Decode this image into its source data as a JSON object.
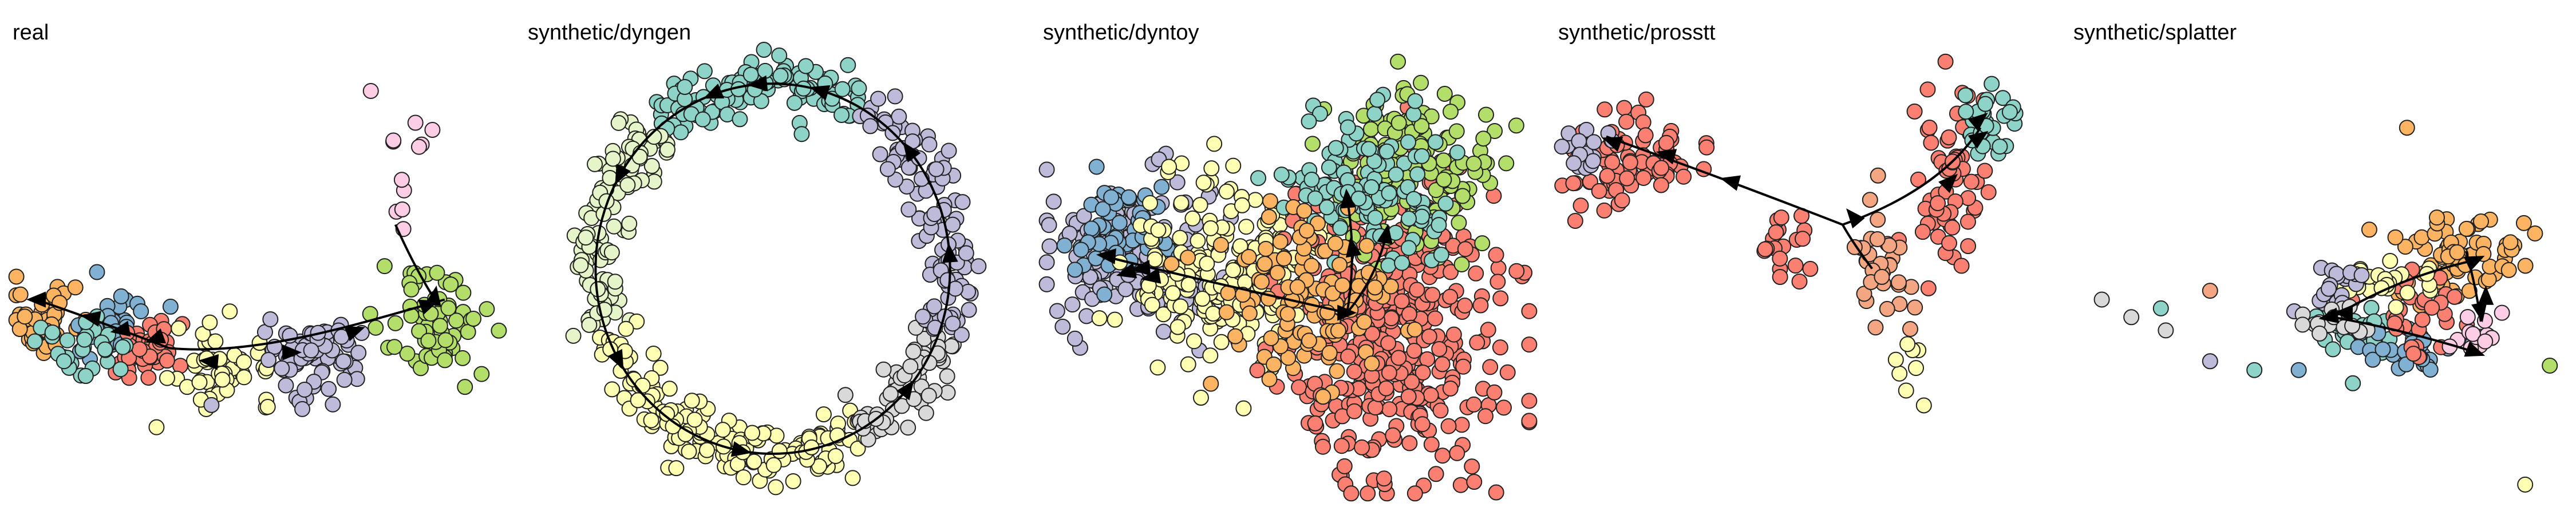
{
  "palette": [
    "#8DD3C7",
    "#FFFFB3",
    "#BEBADA",
    "#FB8072",
    "#80B1D3",
    "#FDB462",
    "#B3DE69",
    "#FCCDE5",
    "#D9D9D9",
    "#E6F5C9",
    "#F4A582",
    "#9ECAE1"
  ],
  "chart_data": [
    {
      "type": "scatter",
      "title": "real",
      "xlabel": "",
      "ylabel": "",
      "grid": false,
      "legend": "none",
      "clusters": [
        {
          "cx": 0.06,
          "cy": 0.4,
          "sx": 0.04,
          "sy": 0.035,
          "n": 55,
          "color": "#FDB462"
        },
        {
          "cx": 0.2,
          "cy": 0.38,
          "sx": 0.05,
          "sy": 0.04,
          "n": 45,
          "color": "#80B1D3"
        },
        {
          "cx": 0.27,
          "cy": 0.33,
          "sx": 0.04,
          "sy": 0.035,
          "n": 45,
          "color": "#FB8072"
        },
        {
          "cx": 0.16,
          "cy": 0.34,
          "sx": 0.05,
          "sy": 0.04,
          "n": 30,
          "color": "#8DD3C7"
        },
        {
          "cx": 0.43,
          "cy": 0.3,
          "sx": 0.05,
          "sy": 0.04,
          "n": 50,
          "color": "#FFFFB3"
        },
        {
          "cx": 0.62,
          "cy": 0.32,
          "sx": 0.05,
          "sy": 0.045,
          "n": 70,
          "color": "#BEBADA"
        },
        {
          "cx": 0.86,
          "cy": 0.39,
          "sx": 0.055,
          "sy": 0.06,
          "n": 75,
          "color": "#B3DE69"
        },
        {
          "cx": 0.8,
          "cy": 0.78,
          "sx": 0.04,
          "sy": 0.09,
          "n": 12,
          "color": "#FCCDE5"
        }
      ],
      "curves": [
        [
          [
            0.05,
            0.45
          ],
          [
            0.18,
            0.4
          ],
          [
            0.32,
            0.34
          ]
        ],
        [
          [
            0.32,
            0.34
          ],
          [
            0.5,
            0.32
          ],
          [
            0.72,
            0.4
          ],
          [
            0.88,
            0.45
          ]
        ],
        [
          [
            0.78,
            0.62
          ],
          [
            0.82,
            0.52
          ],
          [
            0.86,
            0.45
          ]
        ]
      ],
      "arrows": [
        {
          "x": 0.05,
          "y": 0.45,
          "ang": 180
        },
        {
          "x": 0.16,
          "y": 0.41,
          "ang": 170
        },
        {
          "x": 0.22,
          "y": 0.38,
          "ang": 190
        },
        {
          "x": 0.29,
          "y": 0.36,
          "ang": 200
        },
        {
          "x": 0.4,
          "y": 0.31,
          "ang": 175
        },
        {
          "x": 0.57,
          "y": 0.33,
          "ang": 0
        },
        {
          "x": 0.7,
          "y": 0.38,
          "ang": 20
        },
        {
          "x": 0.85,
          "y": 0.44,
          "ang": 20
        },
        {
          "x": 0.86,
          "y": 0.46,
          "ang": 80
        }
      ]
    },
    {
      "type": "scatter",
      "title": "synthetic/dyngen",
      "xlabel": "",
      "ylabel": "",
      "grid": false,
      "legend": "none",
      "ring": {
        "cx": 0.5,
        "cy": 0.52,
        "rx": 0.36,
        "ry": 0.42
      },
      "clusters": [
        {
          "angle_start": 60,
          "angle_end": 130,
          "n": 110,
          "color": "#8DD3C7"
        },
        {
          "angle_start": 130,
          "angle_end": 200,
          "n": 110,
          "color": "#E6F5C9"
        },
        {
          "angle_start": 200,
          "angle_end": 300,
          "n": 150,
          "color": "#FFFFB3"
        },
        {
          "angle_start": 300,
          "angle_end": 340,
          "n": 60,
          "color": "#D9D9D9"
        },
        {
          "angle_start": 340,
          "angle_end": 420,
          "n": 110,
          "color": "#BEBADA"
        }
      ],
      "arrows": [
        {
          "angle": 95,
          "dir": "ccw"
        },
        {
          "angle": 110,
          "dir": "ccw"
        },
        {
          "angle": 150,
          "dir": "ccw"
        },
        {
          "angle": 210,
          "dir": "ccw"
        },
        {
          "angle": 260,
          "dir": "ccw"
        },
        {
          "angle": 320,
          "dir": "ccw"
        },
        {
          "angle": 5,
          "dir": "ccw"
        },
        {
          "angle": 40,
          "dir": "ccw"
        },
        {
          "angle": 75,
          "dir": "ccw"
        }
      ]
    },
    {
      "type": "scatter",
      "title": "synthetic/dyntoy",
      "xlabel": "",
      "ylabel": "",
      "grid": false,
      "legend": "none",
      "clusters": [
        {
          "cx": 0.18,
          "cy": 0.55,
          "sx": 0.09,
          "sy": 0.08,
          "n": 160,
          "color": "#BEBADA"
        },
        {
          "cx": 0.15,
          "cy": 0.6,
          "sx": 0.06,
          "sy": 0.05,
          "n": 60,
          "color": "#80B1D3"
        },
        {
          "cx": 0.38,
          "cy": 0.52,
          "sx": 0.09,
          "sy": 0.1,
          "n": 200,
          "color": "#FFFFB3"
        },
        {
          "cx": 0.72,
          "cy": 0.4,
          "sx": 0.11,
          "sy": 0.18,
          "n": 420,
          "color": "#FB8072"
        },
        {
          "cx": 0.76,
          "cy": 0.74,
          "sx": 0.08,
          "sy": 0.09,
          "n": 160,
          "color": "#B3DE69"
        },
        {
          "cx": 0.66,
          "cy": 0.7,
          "sx": 0.08,
          "sy": 0.08,
          "n": 120,
          "color": "#8DD3C7"
        },
        {
          "cx": 0.55,
          "cy": 0.45,
          "sx": 0.09,
          "sy": 0.1,
          "n": 120,
          "color": "#FDB462"
        }
      ],
      "curves": [
        [
          [
            0.12,
            0.55
          ],
          [
            0.3,
            0.5
          ],
          [
            0.62,
            0.42
          ]
        ],
        [
          [
            0.62,
            0.42
          ],
          [
            0.64,
            0.55
          ],
          [
            0.62,
            0.68
          ]
        ],
        [
          [
            0.62,
            0.42
          ],
          [
            0.68,
            0.5
          ],
          [
            0.7,
            0.6
          ]
        ]
      ],
      "arrows": [
        {
          "x": 0.13,
          "y": 0.55,
          "ang": 175
        },
        {
          "x": 0.17,
          "y": 0.51,
          "ang": 195
        },
        {
          "x": 0.2,
          "y": 0.52,
          "ang": 185
        },
        {
          "x": 0.22,
          "y": 0.5,
          "ang": 190
        },
        {
          "x": 0.62,
          "y": 0.68,
          "ang": 95
        },
        {
          "x": 0.63,
          "y": 0.57,
          "ang": 100
        },
        {
          "x": 0.7,
          "y": 0.6,
          "ang": 80
        },
        {
          "x": 0.62,
          "y": 0.42,
          "ang": 0
        }
      ]
    },
    {
      "type": "scatter",
      "title": "synthetic/prosstt",
      "xlabel": "",
      "ylabel": "",
      "grid": false,
      "legend": "none",
      "clusters": [
        {
          "cx": 0.14,
          "cy": 0.76,
          "sx": 0.07,
          "sy": 0.05,
          "n": 80,
          "color": "#FB8072"
        },
        {
          "cx": 0.05,
          "cy": 0.8,
          "sx": 0.03,
          "sy": 0.03,
          "n": 18,
          "color": "#BEBADA"
        },
        {
          "cx": 0.45,
          "cy": 0.56,
          "sx": 0.03,
          "sy": 0.05,
          "n": 20,
          "color": "#FB8072"
        },
        {
          "cx": 0.79,
          "cy": 0.72,
          "sx": 0.035,
          "sy": 0.12,
          "n": 60,
          "color": "#FB8072"
        },
        {
          "cx": 0.87,
          "cy": 0.85,
          "sx": 0.03,
          "sy": 0.04,
          "n": 30,
          "color": "#8DD3C7"
        },
        {
          "cx": 0.66,
          "cy": 0.5,
          "sx": 0.03,
          "sy": 0.09,
          "n": 35,
          "color": "#F4A582"
        },
        {
          "cx": 0.71,
          "cy": 0.25,
          "sx": 0.02,
          "sy": 0.07,
          "n": 8,
          "color": "#FFFFB3"
        }
      ],
      "curves": [
        [
          [
            0.1,
            0.82
          ],
          [
            0.35,
            0.72
          ],
          [
            0.58,
            0.62
          ]
        ],
        [
          [
            0.58,
            0.62
          ],
          [
            0.78,
            0.7
          ],
          [
            0.86,
            0.84
          ]
        ],
        [
          [
            0.58,
            0.62
          ],
          [
            0.6,
            0.58
          ],
          [
            0.64,
            0.52
          ]
        ]
      ],
      "arrows": [
        {
          "x": 0.11,
          "y": 0.81,
          "ang": 160
        },
        {
          "x": 0.22,
          "y": 0.78,
          "ang": 165
        },
        {
          "x": 0.35,
          "y": 0.72,
          "ang": 165
        },
        {
          "x": 0.6,
          "y": 0.64,
          "ang": 130
        },
        {
          "x": 0.8,
          "y": 0.72,
          "ang": 45
        },
        {
          "x": 0.86,
          "y": 0.82,
          "ang": 35
        },
        {
          "x": 0.86,
          "y": 0.86,
          "ang": 40
        }
      ]
    },
    {
      "type": "scatter",
      "title": "synthetic/splatter",
      "xlabel": "",
      "ylabel": "",
      "grid": false,
      "legend": "none",
      "clusters": [
        {
          "cx": 0.78,
          "cy": 0.55,
          "sx": 0.06,
          "sy": 0.05,
          "n": 70,
          "color": "#FDB462"
        },
        {
          "cx": 0.58,
          "cy": 0.38,
          "sx": 0.05,
          "sy": 0.03,
          "n": 35,
          "color": "#8DD3C7"
        },
        {
          "cx": 0.69,
          "cy": 0.33,
          "sx": 0.05,
          "sy": 0.03,
          "n": 30,
          "color": "#80B1D3"
        },
        {
          "cx": 0.7,
          "cy": 0.42,
          "sx": 0.05,
          "sy": 0.05,
          "n": 30,
          "color": "#FB8072"
        },
        {
          "cx": 0.63,
          "cy": 0.47,
          "sx": 0.05,
          "sy": 0.03,
          "n": 25,
          "color": "#FFFFB3"
        },
        {
          "cx": 0.54,
          "cy": 0.48,
          "sx": 0.03,
          "sy": 0.03,
          "n": 20,
          "color": "#BEBADA"
        },
        {
          "cx": 0.52,
          "cy": 0.4,
          "sx": 0.03,
          "sy": 0.02,
          "n": 15,
          "color": "#D9D9D9"
        },
        {
          "cx": 0.82,
          "cy": 0.38,
          "sx": 0.03,
          "sy": 0.04,
          "n": 15,
          "color": "#FCCDE5"
        }
      ],
      "outliers": [
        {
          "x": 0.68,
          "y": 0.84,
          "color": "#FDB462"
        },
        {
          "x": 0.06,
          "y": 0.45,
          "color": "#D9D9D9"
        },
        {
          "x": 0.12,
          "y": 0.41,
          "color": "#D9D9D9"
        },
        {
          "x": 0.18,
          "y": 0.43,
          "color": "#8DD3C7"
        },
        {
          "x": 0.19,
          "y": 0.38,
          "color": "#D9D9D9"
        },
        {
          "x": 0.28,
          "y": 0.47,
          "color": "#F4A582"
        },
        {
          "x": 0.28,
          "y": 0.31,
          "color": "#BEBADA"
        },
        {
          "x": 0.37,
          "y": 0.29,
          "color": "#8DD3C7"
        },
        {
          "x": 0.46,
          "y": 0.29,
          "color": "#80B1D3"
        },
        {
          "x": 0.57,
          "y": 0.26,
          "color": "#8DD3C7"
        },
        {
          "x": 0.97,
          "y": 0.3,
          "color": "#B3DE69"
        },
        {
          "x": 0.89,
          "y": 0.58,
          "color": "#FDB462"
        },
        {
          "x": 0.94,
          "y": 0.6,
          "color": "#FDB462"
        },
        {
          "x": 0.92,
          "y": 0.03,
          "color": "#FFFFB3"
        }
      ],
      "curves": [
        [
          [
            0.53,
            0.41
          ],
          [
            0.66,
            0.5
          ],
          [
            0.82,
            0.54
          ]
        ],
        [
          [
            0.53,
            0.41
          ],
          [
            0.68,
            0.38
          ],
          [
            0.82,
            0.33
          ]
        ],
        [
          [
            0.8,
            0.56
          ],
          [
            0.82,
            0.48
          ],
          [
            0.83,
            0.4
          ]
        ]
      ],
      "arrows": [
        {
          "x": 0.52,
          "y": 0.41,
          "ang": 190
        },
        {
          "x": 0.55,
          "y": 0.42,
          "ang": 180
        },
        {
          "x": 0.82,
          "y": 0.54,
          "ang": 25
        },
        {
          "x": 0.82,
          "y": 0.33,
          "ang": -20
        },
        {
          "x": 0.83,
          "y": 0.42,
          "ang": -80
        },
        {
          "x": 0.84,
          "y": 0.46,
          "ang": 90
        }
      ]
    }
  ]
}
